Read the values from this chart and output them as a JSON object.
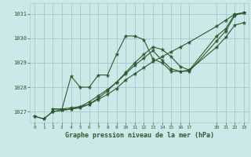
{
  "title": "Graphe pression niveau de la mer (hPa)",
  "bg_color": "#cce8e8",
  "grid_color": "#aacccc",
  "line_color": "#2d5a2d",
  "xlim": [
    -0.5,
    23.5
  ],
  "ylim": [
    1026.55,
    1031.45
  ],
  "yticks": [
    1027,
    1028,
    1029,
    1030,
    1031
  ],
  "xticks": [
    0,
    1,
    2,
    3,
    4,
    5,
    6,
    7,
    8,
    9,
    10,
    11,
    12,
    13,
    14,
    15,
    16,
    17,
    20,
    21,
    22,
    23
  ],
  "series": [
    {
      "x": [
        0,
        1,
        2,
        3,
        4,
        5,
        6,
        7,
        8,
        9,
        10,
        11,
        12,
        13,
        14,
        15,
        16,
        17,
        20,
        21,
        22,
        23
      ],
      "y": [
        1026.8,
        1026.7,
        1027.0,
        1027.05,
        1027.1,
        1027.15,
        1027.3,
        1027.5,
        1027.7,
        1027.95,
        1028.3,
        1028.55,
        1028.8,
        1029.05,
        1029.25,
        1029.45,
        1029.65,
        1029.85,
        1030.5,
        1030.75,
        1031.0,
        1031.05
      ]
    },
    {
      "x": [
        0,
        1,
        2,
        3,
        4,
        5,
        6,
        7,
        8,
        9,
        10,
        11,
        12,
        13,
        14,
        15,
        16,
        17,
        20,
        21,
        22,
        23
      ],
      "y": [
        1026.8,
        1026.7,
        1027.0,
        1027.05,
        1027.1,
        1027.2,
        1027.4,
        1027.65,
        1027.9,
        1028.2,
        1028.6,
        1029.0,
        1029.35,
        1029.65,
        1029.55,
        1029.25,
        1028.85,
        1028.7,
        1029.65,
        1030.05,
        1030.55,
        1030.65
      ]
    },
    {
      "x": [
        2,
        3,
        4,
        5,
        6,
        7,
        8,
        9,
        10,
        11,
        12,
        13,
        14,
        15,
        16,
        17,
        20,
        21,
        22,
        23
      ],
      "y": [
        1027.1,
        1027.1,
        1028.45,
        1028.0,
        1028.0,
        1028.5,
        1028.5,
        1029.35,
        1030.1,
        1030.1,
        1029.95,
        1029.15,
        1029.0,
        1028.65,
        1028.65,
        1028.7,
        1030.1,
        1030.4,
        1031.0,
        1031.05
      ]
    },
    {
      "x": [
        2,
        3,
        4,
        5,
        6,
        7,
        8,
        9,
        10,
        11,
        12,
        13,
        14,
        15,
        16,
        17,
        20,
        21,
        22,
        23
      ],
      "y": [
        1027.1,
        1027.1,
        1027.15,
        1027.2,
        1027.3,
        1027.55,
        1027.85,
        1028.2,
        1028.55,
        1028.9,
        1029.2,
        1029.5,
        1029.1,
        1028.75,
        1028.65,
        1028.65,
        1029.9,
        1030.3,
        1030.95,
        1031.05
      ]
    }
  ]
}
